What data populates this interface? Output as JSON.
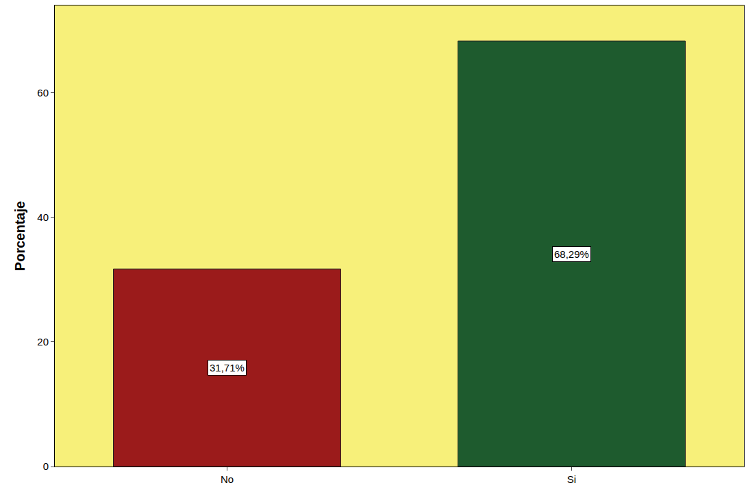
{
  "chart_data": {
    "type": "bar",
    "categories": [
      "No",
      "Si"
    ],
    "values": [
      31.71,
      68.29
    ],
    "value_labels": [
      "31,71%",
      "68,29%"
    ],
    "data_labels": true,
    "colors": [
      "#9b1b1b",
      "#1e5b2e"
    ],
    "y_label": "Porcentaje",
    "ylim": [
      0,
      74
    ],
    "yticks": [
      0,
      20,
      40,
      60
    ],
    "grid": false
  }
}
